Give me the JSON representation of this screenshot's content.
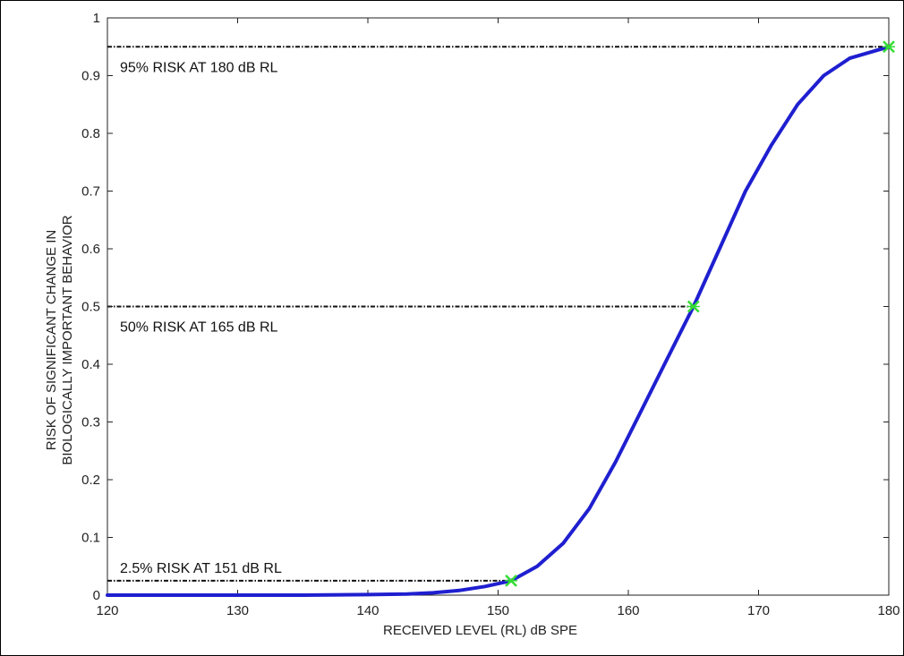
{
  "chart_data": {
    "type": "line",
    "xlabel": "RECEIVED LEVEL (RL) dB SPE",
    "ylabel_lines": [
      "RISK OF SIGNIFICANT CHANGE IN",
      "BIOLOGICALLY IMPORTANT BEHAVIOR"
    ],
    "xlim": [
      120,
      180
    ],
    "ylim": [
      0,
      1
    ],
    "xticks": [
      120,
      130,
      140,
      150,
      160,
      170,
      180
    ],
    "yticks": [
      0,
      0.1,
      0.2,
      0.3,
      0.4,
      0.5,
      0.6,
      0.7,
      0.8,
      0.9,
      1
    ],
    "grid": false,
    "series": [
      {
        "color": "#1f1fd0",
        "x": [
          120,
          125,
          130,
          135,
          140,
          143,
          145,
          147,
          149,
          151,
          153,
          155,
          157,
          159,
          161,
          163,
          165,
          167,
          169,
          171,
          173,
          175,
          177,
          180
        ],
        "y": [
          0,
          0,
          0,
          0,
          0.001,
          0.002,
          0.004,
          0.008,
          0.015,
          0.025,
          0.05,
          0.09,
          0.15,
          0.23,
          0.32,
          0.41,
          0.5,
          0.6,
          0.7,
          0.78,
          0.85,
          0.9,
          0.93,
          0.95
        ]
      }
    ],
    "markers": [
      {
        "x": 151,
        "y": 0.025,
        "color": "#33dd33"
      },
      {
        "x": 165,
        "y": 0.5,
        "color": "#33dd33"
      },
      {
        "x": 180,
        "y": 0.95,
        "color": "#33dd33"
      }
    ],
    "annotations": [
      {
        "text": "95% RISK AT 180 dB RL",
        "x": 180,
        "y": 0.95
      },
      {
        "text": "50% RISK AT 165 dB RL",
        "x": 165,
        "y": 0.5
      },
      {
        "text": "2.5% RISK AT 151 dB RL",
        "x": 151,
        "y": 0.025
      }
    ]
  }
}
